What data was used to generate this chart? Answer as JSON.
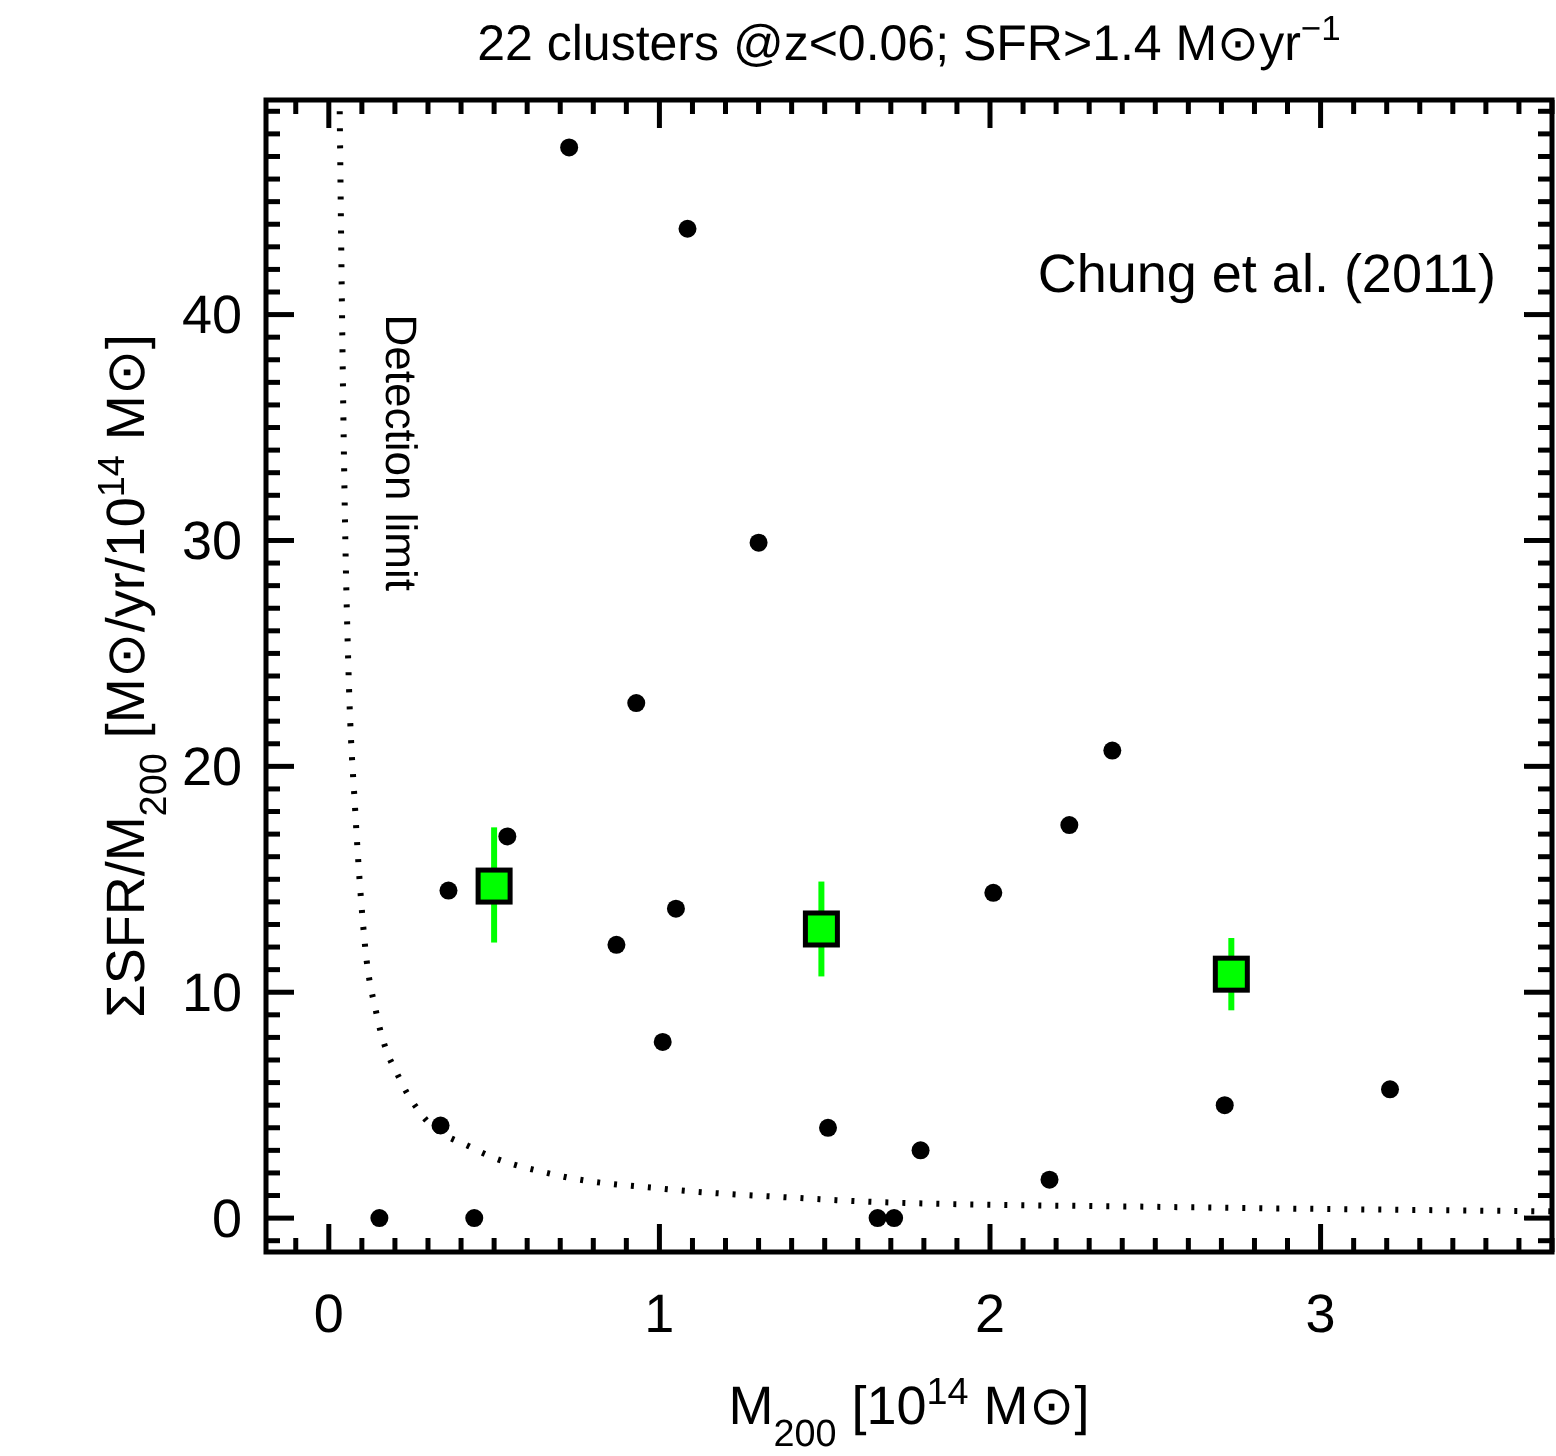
{
  "chart_data": {
    "type": "scatter",
    "title": "22 clusters @z<0.06;  SFR>1.4 M⊙yr$^{−1}$",
    "xlabel": "M$_{200}$ [10$^{14}$ M⊙]",
    "ylabel": "ΣSFR/M$_{200}$ [M⊙/yr/10$^{14}$ M⊙]",
    "annotations": [
      "Chung et al. (2011)"
    ],
    "xlim": [
      -0.19,
      3.7
    ],
    "ylim": [
      -1.5,
      49.5
    ],
    "xticks": [
      {
        "value": -0.1,
        "label": null
      },
      0,
      {
        "value": 0.1,
        "label": null
      },
      {
        "value": 0.2,
        "label": null
      },
      {
        "value": 0.3,
        "label": null
      },
      {
        "value": 0.4,
        "label": null
      },
      {
        "value": 0.5,
        "label": null
      },
      {
        "value": 0.6,
        "label": null
      },
      {
        "value": 0.7,
        "label": null
      },
      {
        "value": 0.8,
        "label": null
      },
      {
        "value": 0.9,
        "label": null
      },
      1,
      {
        "value": 1.1,
        "label": null
      },
      {
        "value": 1.2,
        "label": null
      },
      {
        "value": 1.3,
        "label": null
      },
      {
        "value": 1.4,
        "label": null
      },
      {
        "value": 1.5,
        "label": null
      },
      {
        "value": 1.6,
        "label": null
      },
      {
        "value": 1.7,
        "label": null
      },
      {
        "value": 1.8,
        "label": null
      },
      {
        "value": 1.9,
        "label": null
      },
      2,
      {
        "value": 2.1,
        "label": null
      },
      {
        "value": 2.2,
        "label": null
      },
      {
        "value": 2.3,
        "label": null
      },
      {
        "value": 2.4,
        "label": null
      },
      {
        "value": 2.5,
        "label": null
      },
      {
        "value": 2.6,
        "label": null
      },
      {
        "value": 2.7,
        "label": null
      },
      {
        "value": 2.8,
        "label": null
      },
      {
        "value": 2.9,
        "label": null
      },
      3,
      {
        "value": 3.1,
        "label": null
      },
      {
        "value": 3.2,
        "label": null
      },
      {
        "value": 3.3,
        "label": null
      },
      {
        "value": 3.4,
        "label": null
      },
      {
        "value": 3.5,
        "label": null
      },
      {
        "value": 3.6,
        "label": null
      },
      {
        "value": 3.7,
        "label": null
      }
    ],
    "yticks": [
      {
        "value": -1,
        "label": null
      },
      0,
      {
        "value": 1,
        "label": null
      },
      {
        "value": 2,
        "label": null
      },
      {
        "value": 3,
        "label": null
      },
      {
        "value": 4,
        "label": null
      },
      {
        "value": 5,
        "label": null
      },
      {
        "value": 6,
        "label": null
      },
      {
        "value": 7,
        "label": null
      },
      {
        "value": 8,
        "label": null
      },
      {
        "value": 9,
        "label": null
      },
      10,
      {
        "value": 11,
        "label": null
      },
      {
        "value": 12,
        "label": null
      },
      {
        "value": 13,
        "label": null
      },
      {
        "value": 14,
        "label": null
      },
      {
        "value": 15,
        "label": null
      },
      {
        "value": 16,
        "label": null
      },
      {
        "value": 17,
        "label": null
      },
      {
        "value": 18,
        "label": null
      },
      {
        "value": 19,
        "label": null
      },
      20,
      {
        "value": 21,
        "label": null
      },
      {
        "value": 22,
        "label": null
      },
      {
        "value": 23,
        "label": null
      },
      {
        "value": 24,
        "label": null
      },
      {
        "value": 25,
        "label": null
      },
      {
        "value": 26,
        "label": null
      },
      {
        "value": 27,
        "label": null
      },
      {
        "value": 28,
        "label": null
      },
      {
        "value": 29,
        "label": null
      },
      30,
      {
        "value": 31,
        "label": null
      },
      {
        "value": 32,
        "label": null
      },
      {
        "value": 33,
        "label": null
      },
      {
        "value": 34,
        "label": null
      },
      {
        "value": 35,
        "label": null
      },
      {
        "value": 36,
        "label": null
      },
      {
        "value": 37,
        "label": null
      },
      {
        "value": 38,
        "label": null
      },
      {
        "value": 39,
        "label": null
      },
      40,
      {
        "value": 41,
        "label": null
      },
      {
        "value": 42,
        "label": null
      },
      {
        "value": 43,
        "label": null
      },
      {
        "value": 44,
        "label": null
      },
      {
        "value": 45,
        "label": null
      },
      {
        "value": 46,
        "label": null
      },
      {
        "value": 47,
        "label": null
      },
      {
        "value": 48,
        "label": null
      },
      {
        "value": 49,
        "label": null
      }
    ],
    "grid": false,
    "series": [
      {
        "type": "line",
        "name": "Detection limit",
        "color": "#000000",
        "line_style": "dotted",
        "marker": "none",
        "x": [
          0.033,
          0.04,
          0.05,
          0.06,
          0.08,
          0.11,
          0.145,
          0.22,
          0.28,
          0.435,
          0.69,
          1.01,
          1.41,
          1.68,
          2.5,
          3.7
        ],
        "values": [
          49,
          40,
          30,
          24,
          18,
          12,
          9,
          6,
          4.6,
          3.1,
          1.9,
          1.3,
          0.9,
          0.7,
          0.5,
          0.3
        ]
      },
      {
        "color": "#000000",
        "marker": "circle",
        "x": [
          0.153,
          0.44,
          0.338,
          0.362,
          0.54,
          0.93,
          0.87,
          1.05,
          1.01,
          1.51,
          1.66,
          1.71,
          1.79,
          0.727,
          1.085,
          1.3,
          2.18,
          2.01,
          2.24,
          2.37,
          2.71,
          3.21
        ],
        "values": [
          0,
          0,
          4.1,
          14.5,
          16.9,
          22.8,
          12.1,
          13.7,
          7.8,
          4.0,
          0,
          0,
          3.0,
          47.4,
          43.8,
          29.9,
          1.7,
          14.4,
          17.4,
          20.7,
          5.0,
          5.7
        ]
      },
      {
        "color": "#00ff00",
        "marker": "square",
        "x": [
          0.5,
          1.49,
          2.73
        ],
        "values": [
          14.7,
          12.8,
          10.8
        ],
        "errors": [
          [
            12.2,
            17.3
          ],
          [
            10.7,
            14.9
          ],
          [
            9.2,
            12.4
          ]
        ]
      }
    ]
  }
}
